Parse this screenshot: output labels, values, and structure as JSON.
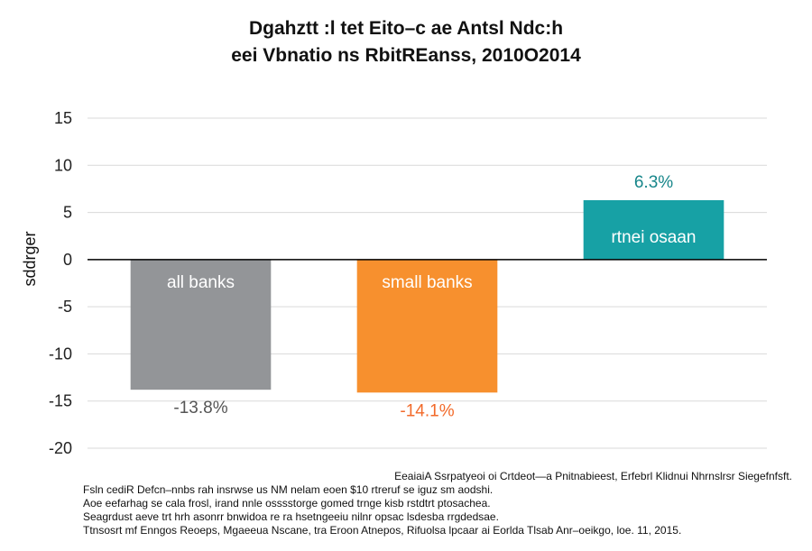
{
  "chart_data": {
    "type": "bar",
    "title": [
      "Dgahztt :l tet Eito–c ae Antsl Ndc:h",
      "eei Vbnatio ns RbitREanss, 2010O2014"
    ],
    "ylabel": "sddrger",
    "xlabel": "",
    "ylim": [
      -20,
      15
    ],
    "yticks": [
      15,
      10,
      5,
      0,
      -5,
      -10,
      -15,
      -20
    ],
    "grid": true,
    "categories": [
      "all banks",
      "small banks",
      "rtnei osaan"
    ],
    "values": [
      -13.8,
      -14.1,
      6.3
    ],
    "value_labels": [
      "-13.8%",
      "-14.1%",
      "6.3%"
    ],
    "colors": [
      "#939598",
      "#f7902e",
      "#17a1a5"
    ],
    "value_label_colors": [
      "#555555",
      "#f26a2a",
      "#17868a"
    ]
  },
  "footer": {
    "source": "EeaiaiA Ssrpatyeoi oi Crtdeot—a Pnitnabieest, Erfebrl Klidnui Nhrnslrsr Siegefnfsft.",
    "notes": [
      "Fsln cediR Defcn–nnbs rah insrwse us NM nelam eoen $10 rtreruf se iguz sm aodshi.",
      "Aoe eefarhag se cala frosl, irand nnle osssstorge gomed trnge kisb rstdtrt ptosachea.",
      "Seagrdust aeve trt hrh asonrr bnwidoa re ra hsetngeeiu nilnr opsac lsdesba rrgdedsae.",
      "Ttnsosrt mf Enngos Reoeps, Mgaeeua Nscane, tra Eroon Atnepos, Rifuolsa lpcaar ai Eorlda Tlsab Anr–oeikgo, loe. 11, 2015."
    ]
  }
}
